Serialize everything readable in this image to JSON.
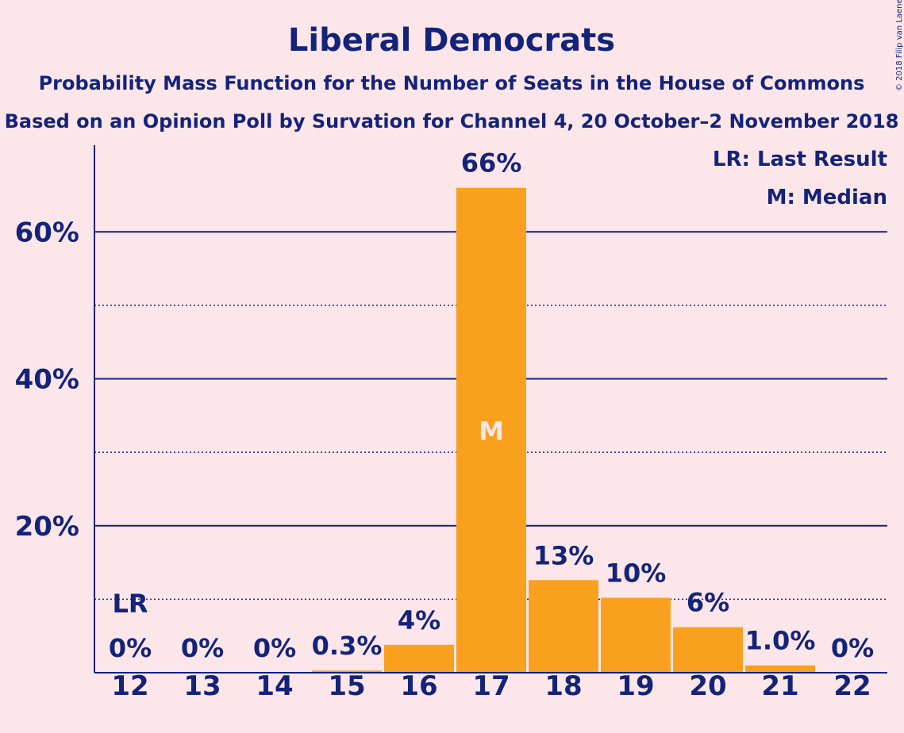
{
  "copyright": "© 2018 Filip van Laenen",
  "colors": {
    "background": "#fde6ea",
    "bar": "#f9a11f",
    "text": "#14237a"
  },
  "legend": {
    "lr": "LR: Last Result",
    "m": "M: Median"
  },
  "chart_data": {
    "type": "bar",
    "title": "Liberal Democrats",
    "subtitle": "Probability Mass Function for the Number of Seats in the House of Commons",
    "subtitle2": "Based on an Opinion Poll by Survation for Channel 4, 20 October–2 November 2018",
    "xlabel": "",
    "ylabel": "",
    "categories": [
      "12",
      "13",
      "14",
      "15",
      "16",
      "17",
      "18",
      "19",
      "20",
      "21",
      "22"
    ],
    "values": [
      0,
      0,
      0,
      0.3,
      3.8,
      66,
      12.6,
      10.2,
      6.2,
      1.0,
      0
    ],
    "value_labels": [
      "0%",
      "0%",
      "0%",
      "0.3%",
      "4%",
      "66%",
      "13%",
      "10%",
      "6%",
      "1.0%",
      "0%"
    ],
    "ylim": [
      0,
      71.8
    ],
    "yticks": [
      20,
      40,
      60
    ],
    "ytick_labels": [
      "20%",
      "40%",
      "60%"
    ],
    "minor_grid": [
      10,
      30,
      50
    ],
    "last_result": {
      "category": "12",
      "label": "LR"
    },
    "median": {
      "category": "17",
      "label": "M"
    },
    "legend_position": "top-right",
    "grid": true
  }
}
